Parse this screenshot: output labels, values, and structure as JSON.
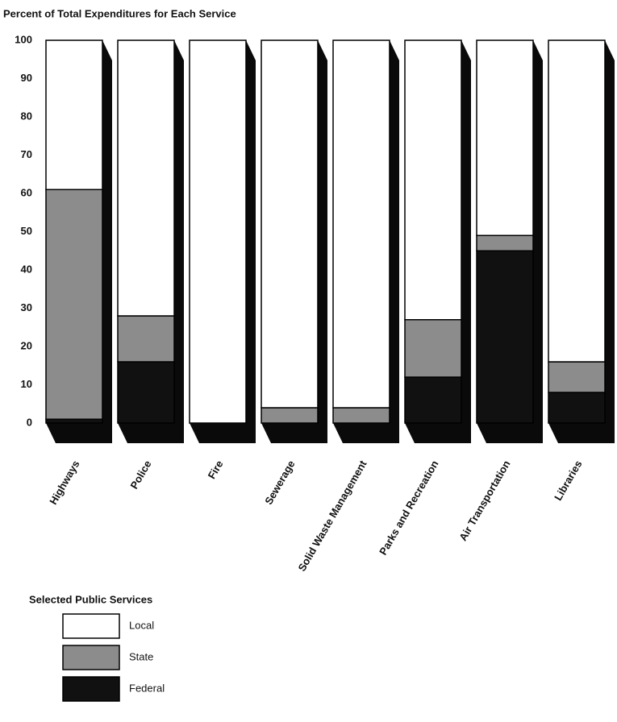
{
  "chart_data": {
    "type": "stacked_bar_3d",
    "title": "Percent of Total Expenditures for Each Service",
    "categories": [
      "Highways",
      "Police",
      "Fire",
      "Sewerage",
      "Solid Waste Management",
      "Parks and Recreation",
      "Air Transportation",
      "Libraries"
    ],
    "series": [
      {
        "name": "Federal",
        "color": "#111111",
        "values": [
          1,
          16,
          0,
          0,
          0,
          12,
          45,
          8
        ]
      },
      {
        "name": "State",
        "color": "#8c8c8c",
        "values": [
          60,
          12,
          0,
          4,
          4,
          15,
          4,
          8
        ]
      },
      {
        "name": "Local",
        "color": "#ffffff",
        "values": [
          39,
          72,
          100,
          96,
          96,
          73,
          51,
          84
        ]
      }
    ],
    "ylim": [
      0,
      100
    ],
    "yticks": [
      0,
      10,
      20,
      30,
      40,
      50,
      60,
      70,
      80,
      90,
      100
    ],
    "legend_title": "Selected Public Services",
    "legend_position": "bottom-left"
  }
}
